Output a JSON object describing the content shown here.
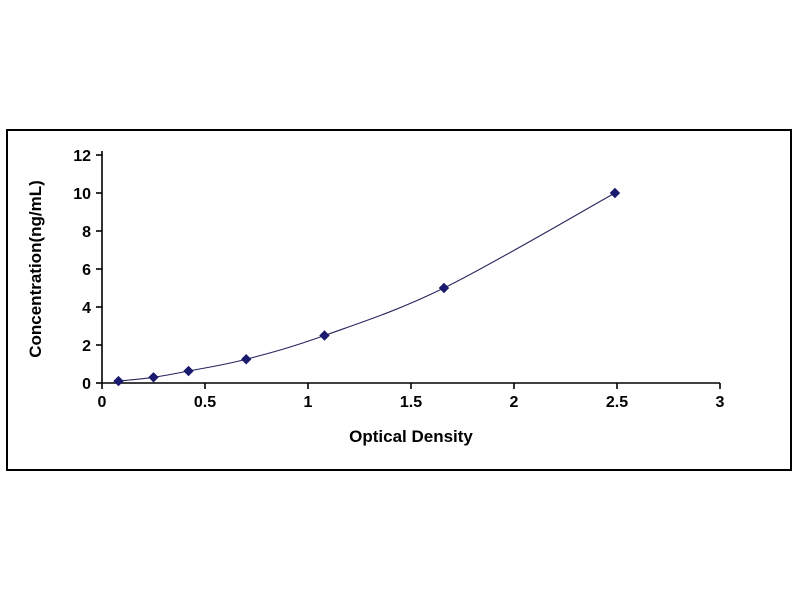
{
  "page": {
    "background_color": "#ffffff"
  },
  "chart_data": {
    "type": "line",
    "title": "",
    "xlabel": "Optical Density",
    "ylabel": "Concentration(ng/mL)",
    "x": [
      0.08,
      0.25,
      0.42,
      0.7,
      1.08,
      1.66,
      2.49
    ],
    "y": [
      0.1,
      0.3,
      0.63,
      1.25,
      2.5,
      5,
      10
    ],
    "xlim": [
      0,
      3
    ],
    "ylim": [
      0,
      12
    ],
    "x_ticks": [
      0,
      0.5,
      1,
      1.5,
      2,
      2.5,
      3
    ],
    "y_ticks": [
      0,
      2,
      4,
      6,
      8,
      10,
      12
    ],
    "grid": false,
    "legend_position": "none",
    "marker": "diamond",
    "marker_color": "#1a1a6e",
    "line_color": "#26265e",
    "axis_color": "#000000"
  }
}
